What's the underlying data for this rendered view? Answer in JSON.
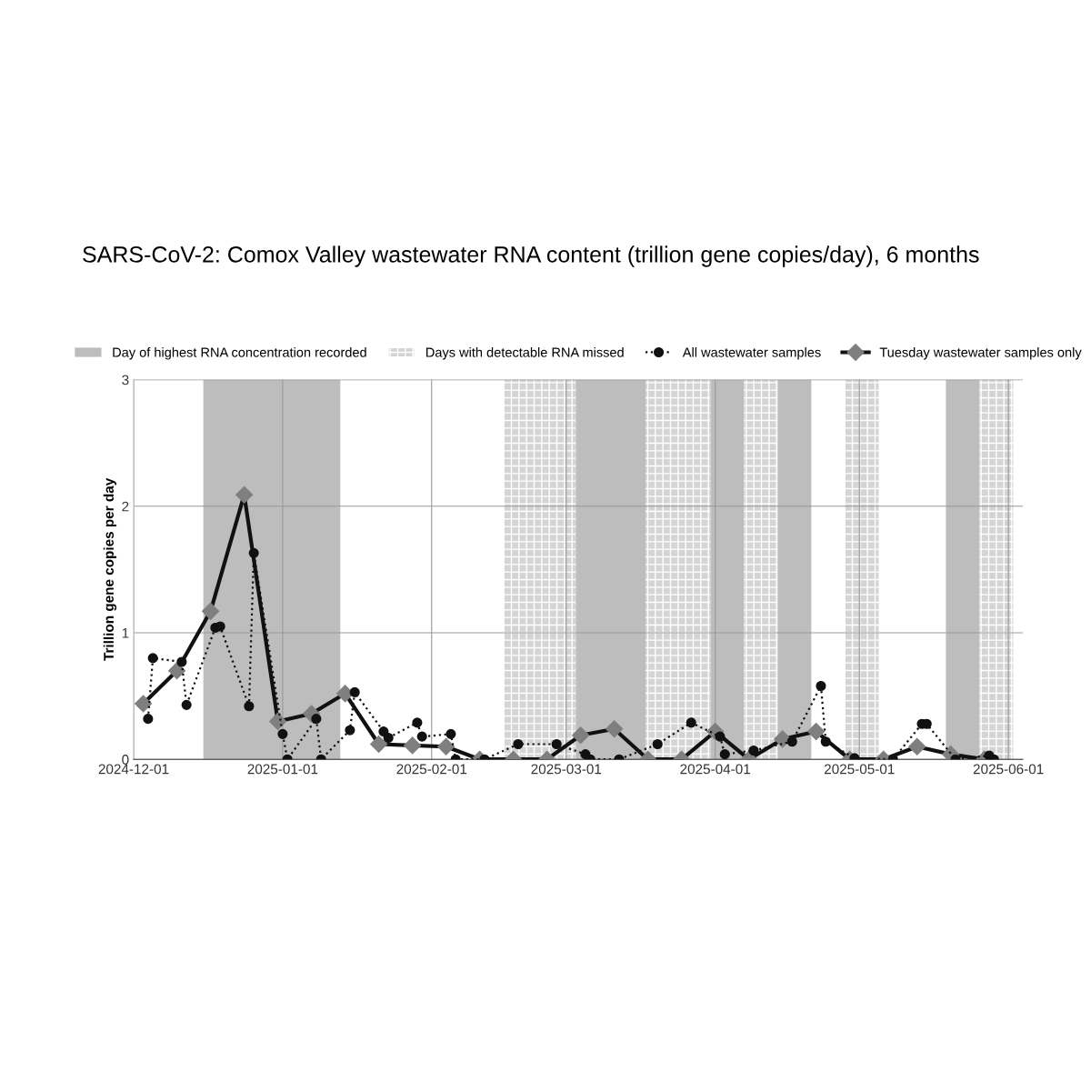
{
  "chart_data": {
    "type": "line",
    "title": "SARS-CoV-2: Comox Valley wastewater RNA content (trillion gene copies/day), 6 months",
    "ylabel": "Trillion gene copies per day",
    "xlim": [
      "2024-12-01",
      "2025-06-04"
    ],
    "xticks": [
      {
        "value": "2024-12-01",
        "label": "2024-12-01"
      },
      {
        "value": "2025-01-01",
        "label": "2025-01-01"
      },
      {
        "value": "2025-02-01",
        "label": "2025-02-01"
      },
      {
        "value": "2025-03-01",
        "label": "2025-03-01"
      },
      {
        "value": "2025-04-01",
        "label": "2025-04-01"
      },
      {
        "value": "2025-05-01",
        "label": "2025-05-01"
      },
      {
        "value": "2025-06-01",
        "label": "2025-06-01"
      }
    ],
    "ylim": [
      0,
      3
    ],
    "yticks": [
      0,
      1,
      2,
      3
    ],
    "grid": true,
    "legend": "top",
    "bands": [
      {
        "axis": "x",
        "from": "2024-12-15T12:00",
        "to": "2025-01-13",
        "label": "Day of highest RNA concentration recorded",
        "color": "#bdbdbd"
      },
      {
        "axis": "x",
        "from": "2025-02-16",
        "to": "2025-03-03",
        "label": "Days with detectable RNA missed",
        "color": "#d4d4d4"
      },
      {
        "axis": "x",
        "from": "2025-03-03",
        "to": "2025-03-17T12:00",
        "color": "#bdbdbd"
      },
      {
        "axis": "x",
        "from": "2025-03-17T12:00",
        "to": "2025-03-31",
        "color": "#d4d4d4"
      },
      {
        "axis": "x",
        "from": "2025-03-31",
        "to": "2025-04-07",
        "color": "#bdbdbd"
      },
      {
        "axis": "x",
        "from": "2025-04-07",
        "to": "2025-04-14",
        "color": "#d4d4d4"
      },
      {
        "axis": "x",
        "from": "2025-04-14",
        "to": "2025-04-21",
        "color": "#bdbdbd"
      },
      {
        "axis": "x",
        "from": "2025-04-28",
        "to": "2025-05-05",
        "color": "#d4d4d4"
      },
      {
        "axis": "x",
        "from": "2025-05-19",
        "to": "2025-05-26",
        "color": "#bdbdbd"
      },
      {
        "axis": "x",
        "from": "2025-05-26",
        "to": "2025-06-02",
        "color": "#d4d4d4"
      }
    ],
    "series": [
      {
        "name": "All wastewater samples",
        "color": "#111111",
        "marker": "circle",
        "line_style": "dotted",
        "x": [
          "2024-12-04",
          "2024-12-05",
          "2024-12-11",
          "2024-12-12",
          "2024-12-18",
          "2024-12-19",
          "2024-12-25",
          "2024-12-26",
          "2025-01-01",
          "2025-01-02",
          "2025-01-08",
          "2025-01-09",
          "2025-01-15",
          "2025-01-16",
          "2025-01-22",
          "2025-01-23",
          "2025-01-29",
          "2025-01-30",
          "2025-02-05",
          "2025-02-06",
          "2025-02-12",
          "2025-02-19",
          "2025-02-27",
          "2025-03-05",
          "2025-03-06",
          "2025-03-12",
          "2025-03-20",
          "2025-03-27",
          "2025-04-02",
          "2025-04-03",
          "2025-04-09",
          "2025-04-17",
          "2025-04-23",
          "2025-04-24",
          "2025-04-30",
          "2025-05-08",
          "2025-05-14",
          "2025-05-15",
          "2025-05-21",
          "2025-05-28",
          "2025-05-29"
        ],
        "values": [
          0.32,
          0.8,
          0.77,
          0.43,
          1.04,
          1.05,
          0.42,
          1.63,
          0.2,
          0,
          0.32,
          0,
          0.23,
          0.53,
          0.22,
          0.17,
          0.29,
          0.18,
          0.2,
          0,
          0,
          0.12,
          0.12,
          0.04,
          0,
          0,
          0.12,
          0.29,
          0.18,
          0.04,
          0.07,
          0.14,
          0.58,
          0.14,
          0.01,
          0,
          0.28,
          0.28,
          0,
          0.03,
          0
        ]
      },
      {
        "name": "Tuesday wastewater samples only",
        "color": "#7f7f7f",
        "marker": "diamond",
        "line_style": "solid",
        "x": [
          "2024-12-03",
          "2024-12-10",
          "2024-12-17",
          "2024-12-24",
          "2024-12-31",
          "2025-01-07",
          "2025-01-14",
          "2025-01-21",
          "2025-01-28",
          "2025-02-04",
          "2025-02-11",
          "2025-02-18",
          "2025-02-25",
          "2025-03-04",
          "2025-03-11",
          "2025-03-18",
          "2025-03-25",
          "2025-04-01",
          "2025-04-08",
          "2025-04-15",
          "2025-04-22",
          "2025-04-29",
          "2025-05-06",
          "2025-05-13",
          "2025-05-20",
          "2025-05-27"
        ],
        "values": [
          0.44,
          0.7,
          1.17,
          2.09,
          0.3,
          0.36,
          0.52,
          0.12,
          0.11,
          0.1,
          0,
          0,
          0,
          0.19,
          0.24,
          0,
          0,
          0.22,
          0,
          0.16,
          0.22,
          0,
          0,
          0.1,
          0.04,
          0
        ]
      }
    ]
  }
}
